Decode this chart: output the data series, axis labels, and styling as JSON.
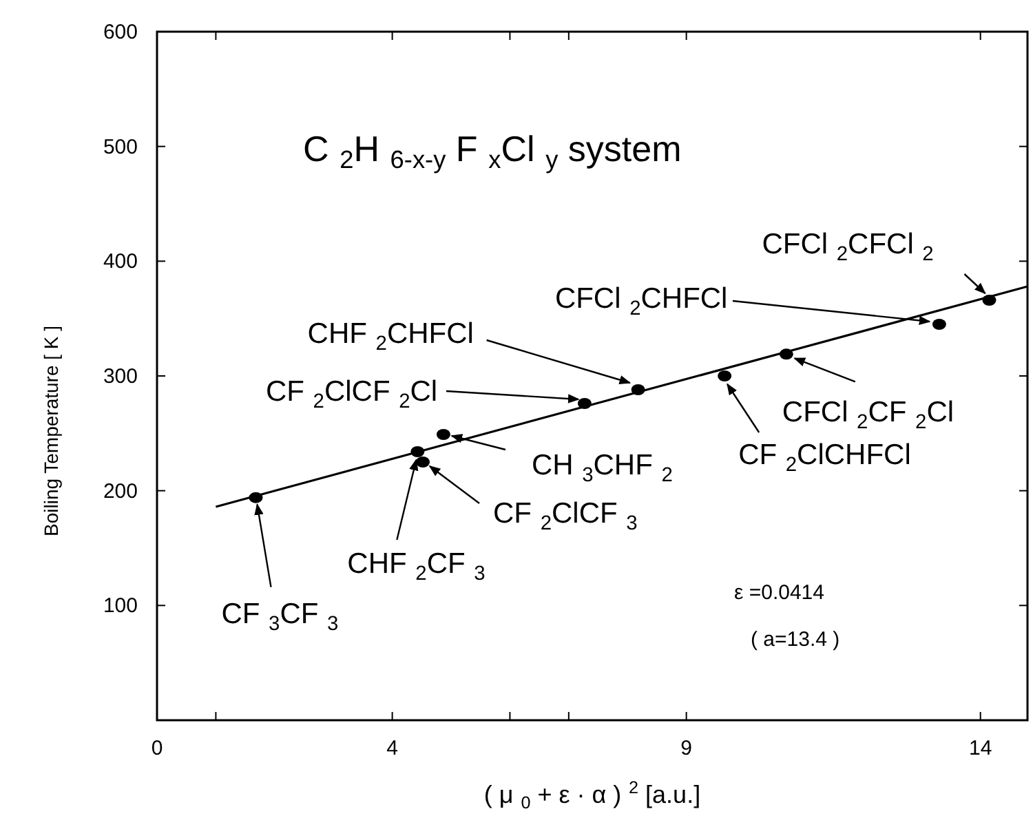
{
  "chart_data": {
    "type": "scatter",
    "title": "C$_{2}$H$_{6-x-y}$ F$_{x}$Cl$_{y}$ system",
    "xlabel": "( μ$_{0}$ + ε · α )$^{2}$  [a.u.]",
    "ylabel": "Boiling Temperature [ K ]",
    "xlim": [
      0,
      14.8
    ],
    "ylim": [
      0,
      600
    ],
    "xticks": [
      0,
      {
        "value": 1,
        "label": null
      },
      4,
      {
        "value": 6,
        "label": null
      },
      {
        "value": 7,
        "label": null
      },
      9,
      14
    ],
    "yticks": [
      100,
      200,
      300,
      400,
      500,
      600
    ],
    "grid": false,
    "series": [
      {
        "marker": "circle",
        "color": "#000000",
        "x": [
          1.68,
          4.43,
          4.52,
          4.87,
          7.27,
          8.18,
          9.65,
          10.7,
          13.3,
          14.15
        ],
        "values": [
          194,
          234,
          225,
          249,
          276,
          288,
          300,
          319,
          345,
          366
        ]
      },
      {
        "type": "line",
        "marker": "none",
        "color": "#000000",
        "x": [
          1.0,
          14.8
        ],
        "values": [
          186,
          378
        ]
      }
    ],
    "annotations": [
      {
        "text": "CF$_{3}$CF$_{3}$",
        "x": 1.68,
        "y": 194
      },
      {
        "text": "CHF$_{2}$CF$_{3}$",
        "x": 4.43,
        "y": 234
      },
      {
        "text": "CF$_{2}$ClCF$_{3}$",
        "x": 4.52,
        "y": 225
      },
      {
        "text": "CH$_{3}$CHF$_{2}$",
        "x": 4.87,
        "y": 249
      },
      "CF$_{2}$ClCF$_{2}$Cl",
      {
        "text": "CHF$_{2}$CHFCl",
        "x": 8.18,
        "y": 288
      },
      {
        "text": "CF$_{2}$ClCHFCl",
        "x": 9.65,
        "y": 300
      },
      {
        "text": "CFCl$_{2}$CF$_{2}$Cl",
        "x": 10.7,
        "y": 319
      },
      {
        "text": "CFCl$_{2}$CHFCl",
        "x": 13.3,
        "y": 345
      },
      {
        "text": "CFCl$_{2}$CFCl$_{2}$",
        "x": 14.15,
        "y": 366
      },
      "ε =0.0414",
      "( a=13.4 )"
    ]
  }
}
